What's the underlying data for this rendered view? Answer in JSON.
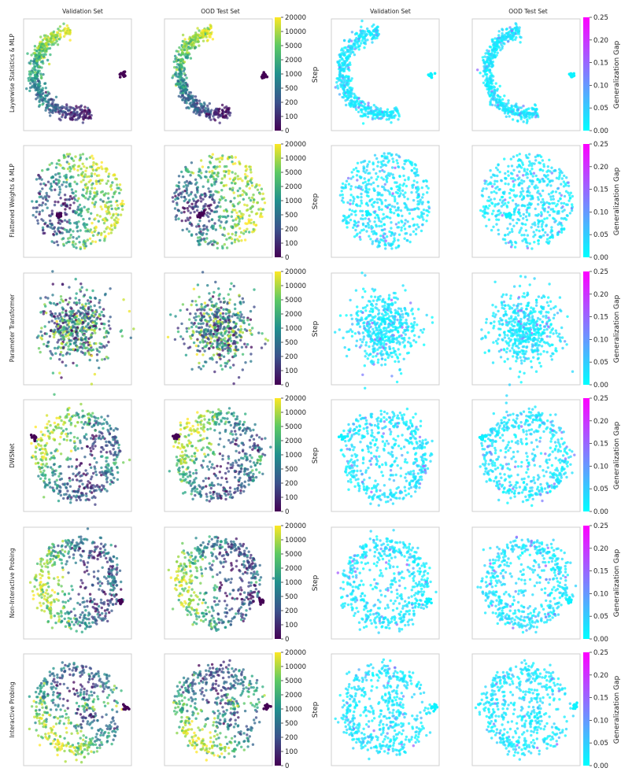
{
  "column_titles": [
    "Validation Set",
    "OOD Test Set",
    "Validation Set",
    "OOD Test Set"
  ],
  "row_labels": [
    "Layerwise Statistics & MLP",
    "Flattened Weights & MLP",
    "Parameter Transformer",
    "DWSNet",
    "Non-Interactive Probing",
    "Interactive Probing"
  ],
  "colorbars": {
    "step": {
      "label": "Step",
      "colormap": "viridis",
      "ticks": [
        "0",
        "100",
        "200",
        "500",
        "1000",
        "2000",
        "5000",
        "10000",
        "20000"
      ]
    },
    "gap": {
      "label": "Generalization Gap",
      "colormap": "cool",
      "ticks": [
        "0.00",
        "0.05",
        "0.10",
        "0.15",
        "0.20",
        "0.25"
      ],
      "range": [
        0,
        0.25
      ]
    }
  },
  "chart_data": {
    "type": "scatter",
    "grid": false,
    "layout": "6 rows x 4 columns",
    "axes_ticks": "none",
    "columns": [
      {
        "title": "Validation Set",
        "color_by": "Step"
      },
      {
        "title": "OOD Test Set",
        "color_by": "Step"
      },
      {
        "title": "Validation Set",
        "color_by": "Generalization Gap"
      },
      {
        "title": "OOD Test Set",
        "color_by": "Generalization Gap"
      }
    ],
    "rows": [
      {
        "label": "Layerwise Statistics & MLP",
        "shape": "crescent",
        "outlier_cluster": "right"
      },
      {
        "label": "Flattened Weights & MLP",
        "shape": "disc-ring",
        "outlier_cluster": "left-center"
      },
      {
        "label": "Parameter Transformer",
        "shape": "gaussian-blob",
        "outlier_cluster": "none"
      },
      {
        "label": "DWSNet",
        "shape": "ring",
        "outlier_cluster": "left"
      },
      {
        "label": "Non-Interactive Probing",
        "shape": "ring",
        "outlier_cluster": "right"
      },
      {
        "label": "Interactive Probing",
        "shape": "open-ring",
        "outlier_cluster": "right"
      }
    ],
    "points_per_panel": 520
  }
}
